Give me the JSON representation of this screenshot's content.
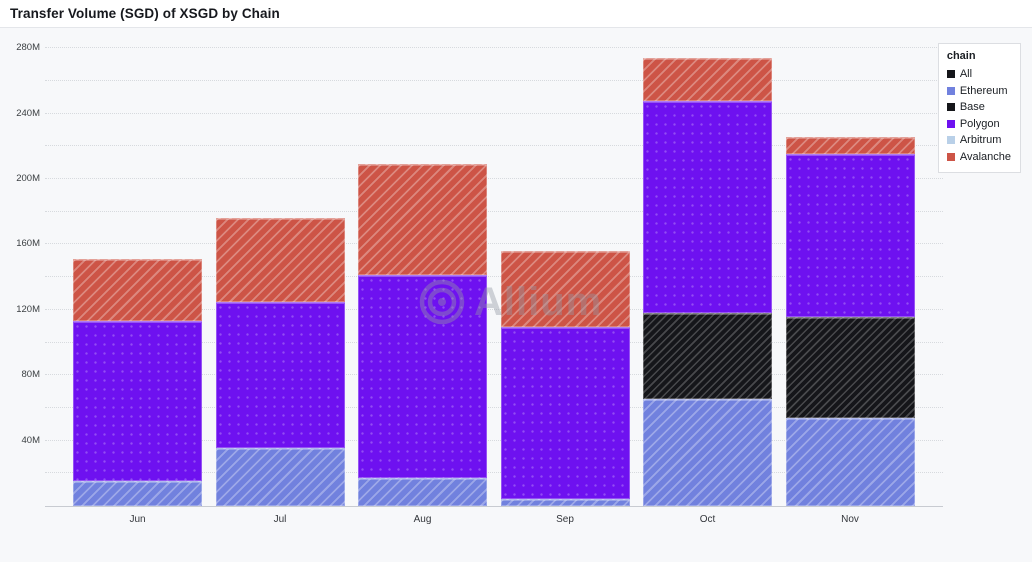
{
  "header": {
    "title": "Transfer Volume (SGD) of XSGD by Chain"
  },
  "legend": {
    "title": "chain",
    "items": [
      {
        "label": "All",
        "color": "#15161a"
      },
      {
        "label": "Ethereum",
        "color": "#7181de"
      },
      {
        "label": "Base",
        "color": "#15161a"
      },
      {
        "label": "Polygon",
        "color": "#6e11f0"
      },
      {
        "label": "Arbitrum",
        "color": "#b9d0e8"
      },
      {
        "label": "Avalanche",
        "color": "#cd5446"
      }
    ]
  },
  "watermark": {
    "text": "Allium",
    "logo": "concentric-circles-logo"
  },
  "chart_data": {
    "type": "bar",
    "stacked": true,
    "title": "Transfer Volume (SGD) of XSGD by Chain",
    "xlabel": "",
    "ylabel": "Transfer Volume (SGD)",
    "unit": "M",
    "categories": [
      "Jun",
      "Jul",
      "Aug",
      "Sep",
      "Oct",
      "Nov"
    ],
    "ylim": [
      0,
      285
    ],
    "ytick_labeled_interval": 40,
    "ygrid_interval": 20,
    "yticks": [
      "40M",
      "80M",
      "120M",
      "160M",
      "200M",
      "240M",
      "280M"
    ],
    "grid": "dotted-horizontal",
    "legend_position": "top-right",
    "series": [
      {
        "name": "All",
        "color": "#15161a",
        "pattern": "diagonal-dense",
        "values": [
          0,
          0,
          0,
          0,
          0,
          0
        ]
      },
      {
        "name": "Ethereum",
        "color": "#7181de",
        "pattern": "diagonal",
        "values": [
          15.0,
          35.7,
          16.9,
          4.1,
          65.3,
          54.0
        ]
      },
      {
        "name": "Base",
        "color": "#15161a",
        "pattern": "diagonal-dense",
        "values": [
          0,
          0,
          0,
          0,
          52.9,
          61.8
        ]
      },
      {
        "name": "Polygon",
        "color": "#6e11f0",
        "pattern": "dots",
        "values": [
          98.1,
          89.1,
          124.4,
          105.6,
          129.7,
          99.5
        ]
      },
      {
        "name": "Arbitrum",
        "color": "#b9d0e8",
        "pattern": "diagonal",
        "values": [
          0,
          0,
          0,
          0,
          0,
          0
        ]
      },
      {
        "name": "Avalanche",
        "color": "#cd5446",
        "pattern": "diagonal",
        "values": [
          37.8,
          51.2,
          67.9,
          46.3,
          25.9,
          10.6
        ]
      }
    ],
    "totals_M": [
      150.9,
      176.0,
      209.2,
      156.0,
      273.8,
      225.9
    ]
  }
}
